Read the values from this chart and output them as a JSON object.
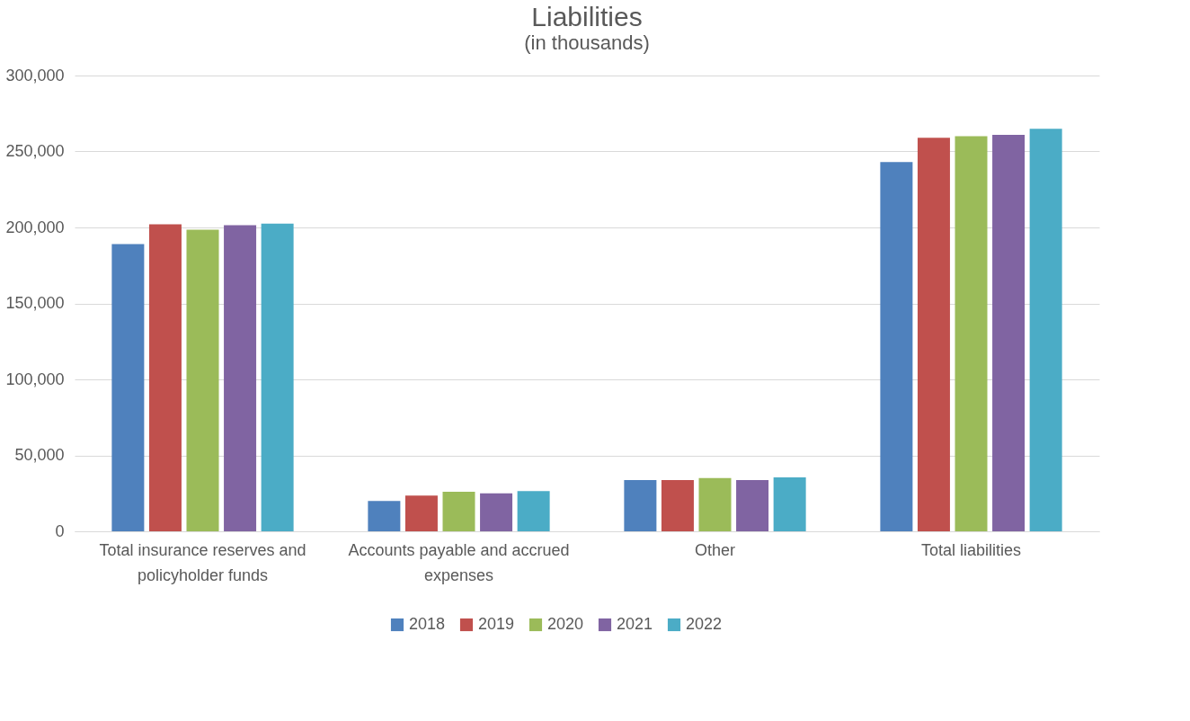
{
  "chart_data": {
    "type": "bar",
    "title": "Liabilities",
    "subtitle": "(in thousands)",
    "categories": [
      "Total insurance reserves and policyholder funds",
      "Accounts payable and accrued expenses",
      "Other",
      "Total liabilities"
    ],
    "series": [
      {
        "name": "2018",
        "color": "#4f81bd",
        "values": [
          189000,
          20000,
          33700,
          243000
        ]
      },
      {
        "name": "2019",
        "color": "#c0504d",
        "values": [
          202000,
          23500,
          33700,
          259000
        ]
      },
      {
        "name": "2020",
        "color": "#9bbb59",
        "values": [
          198500,
          26000,
          35000,
          260000
        ]
      },
      {
        "name": "2021",
        "color": "#8064a2",
        "values": [
          201500,
          25000,
          33700,
          261000
        ]
      },
      {
        "name": "2022",
        "color": "#4bacc6",
        "values": [
          202500,
          26500,
          35500,
          265000
        ]
      }
    ],
    "ylim": [
      0,
      300000
    ],
    "yticks": [
      0,
      {
        "value": 50000,
        "label": "50,000"
      },
      {
        "value": 100000,
        "label": "100,000"
      },
      {
        "value": 150000,
        "label": "150,000"
      },
      {
        "value": 200000,
        "label": "200,000"
      },
      {
        "value": 250000,
        "label": "250,000"
      },
      {
        "value": 300000,
        "label": "300,000"
      }
    ],
    "grid": "y",
    "legend": "bottom"
  }
}
